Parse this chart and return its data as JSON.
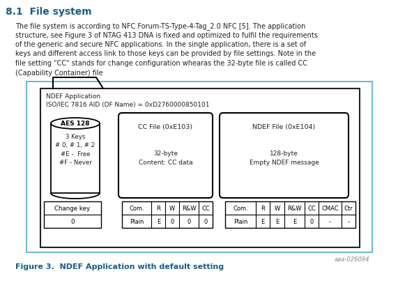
{
  "title": "8.1  File system",
  "para_lines": [
    "The file system is according to NFC Forum-TS-Type-4-Tag_2.0 NFC [5]. The application",
    "structure, see Figure 3 of NTAG 413 DNA is fixed and optimized to fulfil the requirements",
    "of the generic and secure NFC applications. In the single application, there is a set of",
    "keys and different access link to those keys can be provided by file settings. Note in the",
    "file setting \"CC\" stands for change configuration whearas the 32-byte file is called CC",
    "(Capability Container) file"
  ],
  "figure_caption": "Figure 3.  NDEF Application with default setting",
  "watermark": "aaa-026094",
  "ndef_app_label": "NDEF Application\nISO/IEC 7816 AID (DF Name) = 0xD2760000850101",
  "cc_file_label": "CC File (0xE103)",
  "cc_file_body": "32-byte\nContent: CC data",
  "ndef_file_label": "NDEF File (0xE104)",
  "ndef_file_body": "128-byte\nEmpty NDEF message",
  "aes_label": "AES 128",
  "aes_body": "3 Keys\n# 0, # 1, # 2\n#E -  Free\n#F - Never",
  "change_key_header": "Change key",
  "change_key_val": "0",
  "cc_table_headers": [
    "Com.",
    "R",
    "W",
    "R&W",
    "CC"
  ],
  "cc_table_row": [
    "Plain",
    "E",
    "0",
    "0",
    "0"
  ],
  "ndef_table_headers": [
    "Com.",
    "R",
    "W",
    "R&W",
    "CC",
    "CMAC",
    "Ctr"
  ],
  "ndef_table_row": [
    "Plain",
    "E",
    "E",
    "E",
    "0",
    "-",
    "-"
  ],
  "bg_color": "white",
  "text_color": "#222222",
  "title_color": "#1a5c8a",
  "caption_color": "#1a5c8a",
  "outer_border_color": "#5ab4d1",
  "inner_border_color": "#222222"
}
